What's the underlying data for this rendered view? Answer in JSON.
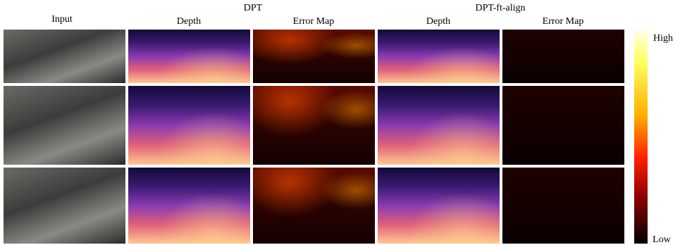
{
  "header": {
    "input": "Input",
    "groups": [
      {
        "title": "DPT",
        "subcolumns": [
          "Depth",
          "Error Map"
        ]
      },
      {
        "title": "DPT-ft-align",
        "subcolumns": [
          "Depth",
          "Error Map"
        ]
      }
    ]
  },
  "colorbar": {
    "high": "High",
    "low": "Low"
  }
}
